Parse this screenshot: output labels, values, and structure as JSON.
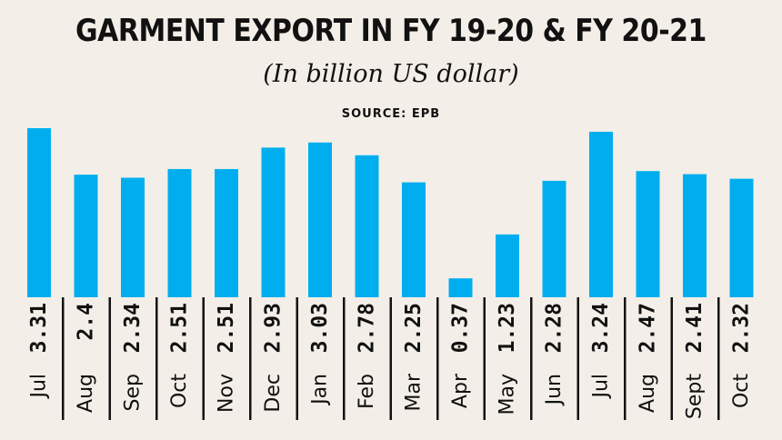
{
  "header": {
    "title": "GARMENT EXPORT IN FY 19-20 & FY 20-21",
    "subtitle": "(In billion US dollar)",
    "source": "SOURCE: EPB"
  },
  "colors": {
    "bar": "#00aeef",
    "background": "#f3efe8",
    "text": "#111111",
    "divider": "#111111"
  },
  "chart_data": {
    "type": "bar",
    "title": "GARMENT EXPORT IN FY 19-20 & FY 20-21",
    "subtitle": "(In billion US dollar)",
    "categories": [
      "Jul",
      "Aug",
      "Sep",
      "Oct",
      "Nov",
      "Dec",
      "Jan",
      "Feb",
      "Mar",
      "Apr",
      "May",
      "Jun",
      "Jul",
      "Aug",
      "Sept",
      "Oct"
    ],
    "values": [
      3.31,
      2.4,
      2.34,
      2.51,
      2.51,
      2.93,
      3.03,
      2.78,
      2.25,
      0.37,
      1.23,
      2.28,
      3.24,
      2.47,
      2.41,
      2.32
    ],
    "value_labels": [
      "3.31",
      "2.4",
      "2.34",
      "2.51",
      "2.51",
      "2.93",
      "3.03",
      "2.78",
      "2.25",
      "0.37",
      "1.23",
      "2.28",
      "3.24",
      "2.47",
      "2.41",
      "2.32"
    ],
    "xlabel": "",
    "ylabel": "",
    "ylim": [
      0,
      3.31
    ],
    "grid": false,
    "legend": "none"
  }
}
